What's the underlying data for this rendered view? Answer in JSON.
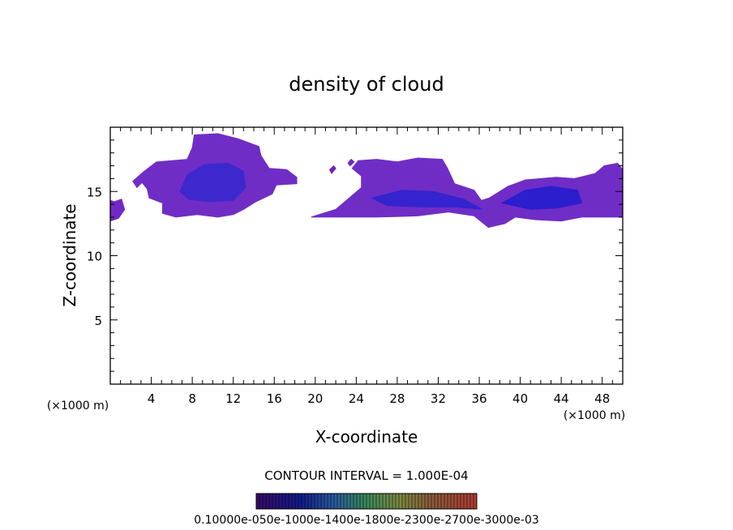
{
  "chart_data": {
    "type": "heatmap",
    "title": "density of cloud",
    "xlabel": "X-coordinate",
    "ylabel": "Z-coordinate",
    "x_unit_left": "(×1000 m)",
    "x_unit_right": "(×1000 m)",
    "xlim": [
      0,
      50
    ],
    "ylim": [
      0,
      20
    ],
    "x_ticks": [
      4,
      8,
      12,
      16,
      20,
      24,
      28,
      32,
      36,
      40,
      44,
      48
    ],
    "y_ticks": [
      5,
      10,
      15
    ],
    "grid": false,
    "contour_interval_text": "CONTOUR INTERVAL = 1.000E-04",
    "colorbar_labels_text": "0.10000e-050e-1000e-1400e-1800e-2300e-2700e-3000e-03",
    "colors": {
      "low": "#7a12b8",
      "mid": "#6a3fd0",
      "high": "#1010cc"
    },
    "cloud_regions": [
      {
        "name": "left-edge",
        "points": [
          [
            0,
            12.7
          ],
          [
            0.8,
            12.9
          ],
          [
            1.4,
            13.6
          ],
          [
            1.1,
            14.4
          ],
          [
            0.4,
            14.2
          ],
          [
            0,
            14.3
          ]
        ],
        "level": 0.25
      },
      {
        "name": "left-cloud",
        "points": [
          [
            2.2,
            15.8
          ],
          [
            3.2,
            16.5
          ],
          [
            4.5,
            17.3
          ],
          [
            7.5,
            17.5
          ],
          [
            8,
            18.4
          ],
          [
            8.2,
            19.4
          ],
          [
            10.5,
            19.5
          ],
          [
            12.5,
            19.1
          ],
          [
            14.5,
            18.5
          ],
          [
            14.7,
            17.8
          ],
          [
            15.5,
            16.8
          ],
          [
            17.2,
            16.7
          ],
          [
            18.2,
            16.1
          ],
          [
            18.2,
            15.6
          ],
          [
            16.2,
            15.5
          ],
          [
            15.8,
            14.8
          ],
          [
            14.2,
            14.2
          ],
          [
            13.0,
            13.6
          ],
          [
            12.0,
            13.2
          ],
          [
            10.5,
            13.0
          ],
          [
            8.5,
            13.2
          ],
          [
            6.4,
            13.0
          ],
          [
            5.1,
            13.3
          ],
          [
            5.1,
            14.1
          ],
          [
            3.8,
            14.5
          ],
          [
            3.6,
            15.2
          ],
          [
            3.1,
            15.7
          ],
          [
            2.6,
            15.3
          ]
        ],
        "level": 0.3
      },
      {
        "name": "left-core",
        "points": [
          [
            6.8,
            15.0
          ],
          [
            7.5,
            16.3
          ],
          [
            9.2,
            17.1
          ],
          [
            11.5,
            17.2
          ],
          [
            13.0,
            16.6
          ],
          [
            13.2,
            15.3
          ],
          [
            12.0,
            14.3
          ],
          [
            9.6,
            14.2
          ],
          [
            7.6,
            14.4
          ]
        ],
        "level": 0.75
      },
      {
        "name": "right-cloud",
        "points": [
          [
            19.6,
            13.0
          ],
          [
            22,
            13.6
          ],
          [
            24.5,
            15.3
          ],
          [
            24.5,
            16.2
          ],
          [
            23.6,
            16.8
          ],
          [
            24.2,
            17.4
          ],
          [
            26.0,
            17.5
          ],
          [
            28.0,
            17.3
          ],
          [
            30.0,
            17.6
          ],
          [
            32.4,
            17.5
          ],
          [
            32.9,
            16.8
          ],
          [
            33.6,
            15.6
          ],
          [
            35.5,
            15.1
          ],
          [
            36.2,
            14.3
          ],
          [
            37.0,
            14.5
          ],
          [
            38.8,
            15.4
          ],
          [
            40.5,
            15.9
          ],
          [
            43.5,
            16.1
          ],
          [
            45.3,
            16.0
          ],
          [
            47.3,
            16.4
          ],
          [
            48.2,
            17.0
          ],
          [
            49.5,
            17.2
          ],
          [
            50.0,
            16.7
          ],
          [
            50.0,
            13.0
          ],
          [
            48,
            13.0
          ],
          [
            46,
            13.0
          ],
          [
            44,
            12.7
          ],
          [
            41.5,
            12.8
          ],
          [
            39.5,
            13.0
          ],
          [
            38.5,
            12.5
          ],
          [
            36.9,
            12.2
          ],
          [
            35.5,
            13.1
          ],
          [
            33.0,
            13.4
          ],
          [
            30.0,
            13.1
          ],
          [
            26.0,
            13.0
          ],
          [
            22.0,
            13.0
          ]
        ],
        "level": 0.3
      },
      {
        "name": "right-core-a",
        "points": [
          [
            25.5,
            14.5
          ],
          [
            28.5,
            15.1
          ],
          [
            31.5,
            15.0
          ],
          [
            34.5,
            14.4
          ],
          [
            36.3,
            13.6
          ],
          [
            33.5,
            13.8
          ],
          [
            30.5,
            13.8
          ],
          [
            27.0,
            13.9
          ]
        ],
        "level": 0.8
      },
      {
        "name": "right-core-b",
        "points": [
          [
            38.2,
            14.1
          ],
          [
            40.5,
            15.1
          ],
          [
            43.0,
            15.4
          ],
          [
            45.6,
            15.1
          ],
          [
            46.0,
            14.1
          ],
          [
            43.5,
            13.7
          ],
          [
            41.0,
            13.6
          ]
        ],
        "level": 0.85
      },
      {
        "name": "blob-a",
        "points": [
          [
            21.6,
            16.4
          ],
          [
            22.0,
            16.8
          ],
          [
            21.8,
            17.0
          ],
          [
            21.4,
            16.7
          ]
        ],
        "level": 0.2
      },
      {
        "name": "blob-b",
        "points": [
          [
            23.4,
            17.0
          ],
          [
            23.8,
            17.3
          ],
          [
            23.5,
            17.5
          ],
          [
            23.2,
            17.2
          ]
        ],
        "level": 0.2
      }
    ]
  }
}
